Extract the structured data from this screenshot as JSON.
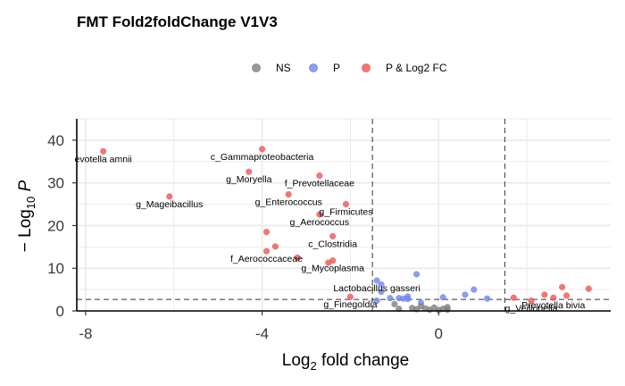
{
  "chart_data": {
    "type": "scatter",
    "title": "FMT Fold2foldChange V1V3",
    "xlabel": "Log2 fold change",
    "ylabel": "-Log10 P",
    "xlim": [
      -8.2,
      3.9
    ],
    "ylim": [
      0,
      45
    ],
    "x_ticks": [
      -8,
      -4,
      0
    ],
    "y_ticks": [
      0,
      10,
      20,
      30,
      40
    ],
    "grid": true,
    "legend_position": "top",
    "thresholds": {
      "fc": [
        -1.5,
        1.5
      ],
      "p": 2.7
    },
    "colors": {
      "NS": "#808080",
      "P": "#6d87e8",
      "P & Log2 FC": "#f05555"
    },
    "legend": [
      {
        "key": "NS",
        "label": "NS"
      },
      {
        "key": "P",
        "label": "P"
      },
      {
        "key": "P & Log2 FC",
        "label": "P & Log2 FC"
      }
    ],
    "series": [
      {
        "name": "P & Log2 FC",
        "points": [
          {
            "x": -7.6,
            "y": 37.4
          },
          {
            "x": -6.1,
            "y": 26.8
          },
          {
            "x": -4.0,
            "y": 37.9
          },
          {
            "x": -4.3,
            "y": 32.6
          },
          {
            "x": -2.7,
            "y": 31.7
          },
          {
            "x": -3.4,
            "y": 27.3
          },
          {
            "x": -2.1,
            "y": 25.0
          },
          {
            "x": -2.7,
            "y": 22.6
          },
          {
            "x": -3.9,
            "y": 18.5
          },
          {
            "x": -2.4,
            "y": 17.5
          },
          {
            "x": -3.7,
            "y": 15.1
          },
          {
            "x": -3.9,
            "y": 14.0
          },
          {
            "x": -3.2,
            "y": 12.5
          },
          {
            "x": -2.4,
            "y": 11.8
          },
          {
            "x": -2.5,
            "y": 11.3
          },
          {
            "x": -2.0,
            "y": 3.3
          },
          {
            "x": 1.7,
            "y": 3.1
          },
          {
            "x": 2.1,
            "y": 2.4
          },
          {
            "x": 2.4,
            "y": 3.8
          },
          {
            "x": 2.6,
            "y": 3.1
          },
          {
            "x": 2.8,
            "y": 5.6
          },
          {
            "x": 3.4,
            "y": 5.2
          },
          {
            "x": 2.9,
            "y": 3.6
          }
        ]
      },
      {
        "name": "P",
        "points": [
          {
            "x": -1.4,
            "y": 7.1
          },
          {
            "x": -1.3,
            "y": 6.2
          },
          {
            "x": -0.5,
            "y": 8.6
          },
          {
            "x": -1.3,
            "y": 4.5
          },
          {
            "x": -1.1,
            "y": 3.0
          },
          {
            "x": -0.9,
            "y": 3.0
          },
          {
            "x": -0.8,
            "y": 2.9
          },
          {
            "x": -0.7,
            "y": 3.4
          },
          {
            "x": -0.7,
            "y": 2.8
          },
          {
            "x": -1.4,
            "y": 2.4
          },
          {
            "x": 0.1,
            "y": 3.2
          },
          {
            "x": 0.6,
            "y": 3.8
          },
          {
            "x": 0.8,
            "y": 5.0
          },
          {
            "x": 1.1,
            "y": 2.9
          },
          {
            "x": -0.4,
            "y": 1.9
          }
        ]
      },
      {
        "name": "NS",
        "points": [
          {
            "x": -1.0,
            "y": 1.6
          },
          {
            "x": -0.9,
            "y": 0.5
          },
          {
            "x": -0.6,
            "y": 0.7
          },
          {
            "x": -0.5,
            "y": 0.4
          },
          {
            "x": -0.4,
            "y": 1.1
          },
          {
            "x": -0.3,
            "y": 0.6
          },
          {
            "x": -0.2,
            "y": 0.3
          },
          {
            "x": -0.1,
            "y": 0.8
          },
          {
            "x": 0.0,
            "y": 0.2
          },
          {
            "x": 0.1,
            "y": 0.5
          },
          {
            "x": 0.2,
            "y": 0.9
          },
          {
            "x": 0.2,
            "y": 0.3
          }
        ]
      }
    ],
    "annotations": [
      {
        "text": "evotella amnii",
        "x": -7.6,
        "y": 37.4
      },
      {
        "text": "c_Gammaproteobacteria",
        "x": -4.0,
        "y": 37.9
      },
      {
        "text": "g_Moryella",
        "x": -4.3,
        "y": 32.6
      },
      {
        "text": "f_Prevotellaceae",
        "x": -2.7,
        "y": 31.7
      },
      {
        "text": "g_Mageibacillus",
        "x": -6.1,
        "y": 26.8
      },
      {
        "text": "g_Enterococcus",
        "x": -3.4,
        "y": 27.3
      },
      {
        "text": "g_Firmicutes",
        "x": -2.1,
        "y": 25.0
      },
      {
        "text": "g_Aerococcus",
        "x": -2.7,
        "y": 22.6
      },
      {
        "text": "c_Clostridia",
        "x": -2.4,
        "y": 17.5
      },
      {
        "text": "f_Aerococcaceae",
        "x": -3.9,
        "y": 14.0
      },
      {
        "text": "g_Mycoplasma",
        "x": -2.4,
        "y": 11.8
      },
      {
        "text": "Lactobacillus gasseri",
        "x": -1.4,
        "y": 7.1
      },
      {
        "text": "g_Finegoldia",
        "x": -2.0,
        "y": 3.3
      },
      {
        "text": "Prevotella bivia",
        "x": 2.6,
        "y": 3.1
      },
      {
        "text": "g_Veillonella",
        "x": 2.1,
        "y": 2.4
      }
    ]
  }
}
